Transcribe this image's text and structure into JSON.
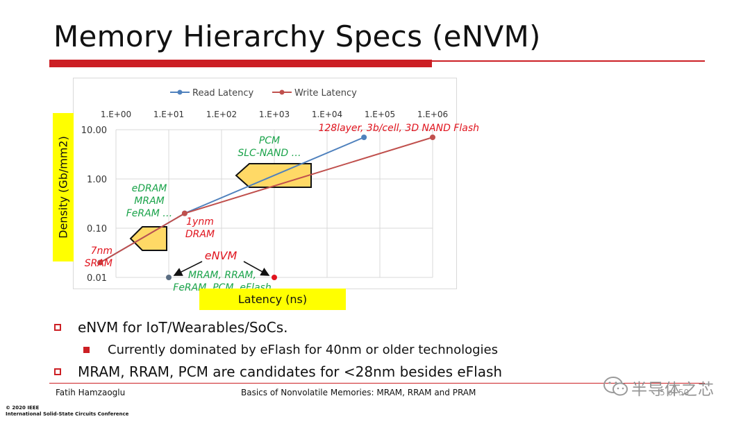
{
  "slide": {
    "title": "Memory Hierarchy Specs (eNVM)",
    "bullets": [
      {
        "text": "eNVM for IoT/Wearables/SoCs.",
        "level": 1
      },
      {
        "text": "Currently dominated by eFlash for 40nm or older technologies",
        "level": 2
      },
      {
        "text": "MRAM, RRAM, PCM are candidates for <28nm besides eFlash",
        "level": 1
      }
    ],
    "footer": {
      "author": "Fatih Hamzaoglu",
      "doc_title": "Basics of Nonvolatile Memories: MRAM, RRAM and PRAM",
      "page": "5 of 50",
      "watermark": "半导体之芯",
      "copyright_line1": "© 2020 IEEE",
      "copyright_line2": "International Solid-State Circuits Conference"
    }
  },
  "colors": {
    "accent_red": "#cc1f24",
    "read_series": "#4f81bd",
    "write_series": "#c0504d",
    "label_green": "#1aa34a",
    "label_red": "#e0141e",
    "highlight_yellow": "#ffff00",
    "arrow_fill": "#ffd966"
  },
  "chart_data": {
    "type": "line",
    "title": "",
    "xlabel": "Latency (ns)",
    "ylabel": "Density (Gb/mm2)",
    "xscale": "log",
    "yscale": "log",
    "xlim": [
      1,
      1000000
    ],
    "ylim": [
      0.01,
      10
    ],
    "x_ticks": [
      "1.E+00",
      "1.E+01",
      "1.E+02",
      "1.E+03",
      "1.E+04",
      "1.E+05",
      "1.E+06"
    ],
    "y_ticks": [
      "10.00",
      "1.00",
      "0.10",
      "0.01"
    ],
    "legend": [
      "Read Latency",
      "Write Latency"
    ],
    "legend_position": "top",
    "series": [
      {
        "name": "Read Latency",
        "points": [
          [
            0.5,
            0.02
          ],
          [
            20,
            0.2
          ],
          [
            50000,
            7
          ]
        ]
      },
      {
        "name": "Write Latency",
        "points": [
          [
            0.5,
            0.02
          ],
          [
            20,
            0.2
          ],
          [
            1000000,
            7
          ]
        ]
      }
    ],
    "envm_points": [
      {
        "name": "eNVM read",
        "x": 10,
        "y": 0.01
      },
      {
        "name": "eNVM write",
        "x": 1000,
        "y": 0.01
      }
    ],
    "annotations": {
      "sram": "7nm\nSRAM",
      "dram": "1ynm\nDRAM",
      "nand": "128layer, 3b/cell, 3D NAND Flash",
      "pcm": "PCM\nSLC-NAND …",
      "edram": "eDRAM\nMRAM\nFeRAM …",
      "envm": "eNVM",
      "envm_list": "MRAM, RRAM,\nFeRAM, PCM, eFlash"
    }
  }
}
